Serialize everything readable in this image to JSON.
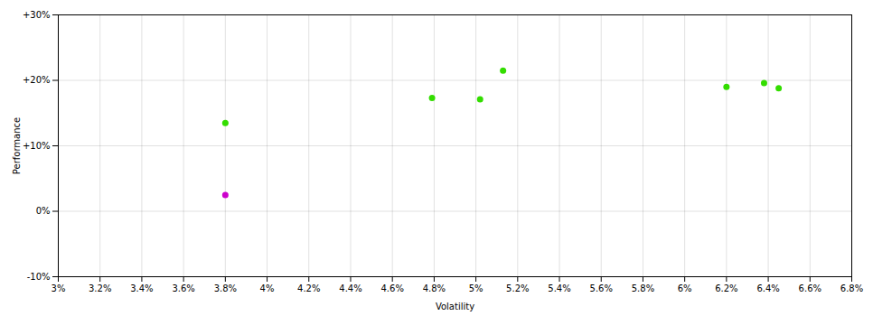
{
  "chart_data": {
    "type": "scatter",
    "xlabel": "Volatility",
    "ylabel": "Performance",
    "xlim": [
      0.03,
      0.068
    ],
    "ylim": [
      -0.1,
      0.3
    ],
    "xticks": [
      {
        "value": 0.03,
        "label": "3%"
      },
      {
        "value": 0.032,
        "label": "3.2%"
      },
      {
        "value": 0.034,
        "label": "3.4%"
      },
      {
        "value": 0.036,
        "label": "3.6%"
      },
      {
        "value": 0.038,
        "label": "3.8%"
      },
      {
        "value": 0.04,
        "label": "4%"
      },
      {
        "value": 0.042,
        "label": "4.2%"
      },
      {
        "value": 0.044,
        "label": "4.4%"
      },
      {
        "value": 0.046,
        "label": "4.6%"
      },
      {
        "value": 0.048,
        "label": "4.8%"
      },
      {
        "value": 0.05,
        "label": "5%"
      },
      {
        "value": 0.052,
        "label": "5.2%"
      },
      {
        "value": 0.054,
        "label": "5.4%"
      },
      {
        "value": 0.056,
        "label": "5.6%"
      },
      {
        "value": 0.058,
        "label": "5.8%"
      },
      {
        "value": 0.06,
        "label": "6%"
      },
      {
        "value": 0.062,
        "label": "6.2%"
      },
      {
        "value": 0.064,
        "label": "6.4%"
      },
      {
        "value": 0.066,
        "label": "6.6%"
      },
      {
        "value": 0.068,
        "label": "6.8%"
      }
    ],
    "yticks": [
      {
        "value": -0.1,
        "label": "-10%"
      },
      {
        "value": 0.0,
        "label": "0%"
      },
      {
        "value": 0.1,
        "label": "+10%"
      },
      {
        "value": 0.2,
        "label": "+20%"
      },
      {
        "value": 0.3,
        "label": "+30%"
      }
    ],
    "grid": true,
    "series": [
      {
        "color": "#33dd00",
        "x": [
          0.038,
          0.0479,
          0.0502,
          0.0513,
          0.062,
          0.0638,
          0.0645
        ],
        "values": [
          0.135,
          0.173,
          0.171,
          0.215,
          0.19,
          0.196,
          0.188
        ]
      },
      {
        "color": "#cc00cc",
        "x": [
          0.038
        ],
        "values": [
          0.025
        ]
      }
    ]
  }
}
